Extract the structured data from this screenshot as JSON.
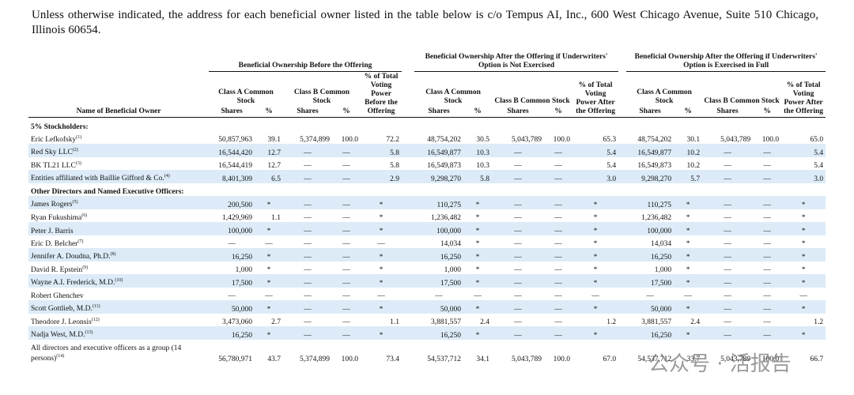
{
  "intro": "Unless otherwise indicated, the address for each beneficial owner listed in the table below is c/o Tempus AI, Inc., 600 West Chicago Avenue, Suite 510 Chicago, Illinois 60654.",
  "table": {
    "name_header": "Name of Beneficial Owner",
    "groups": [
      {
        "title": "Beneficial Ownership Before the Offering",
        "class_a": "Class A Common Stock",
        "class_b": "Class B Common Stock",
        "voting": "% of Total Voting Power Before the Offering",
        "columns": [
          "Shares",
          "%",
          "Shares",
          "%"
        ]
      },
      {
        "title": "Beneficial Ownership After the Offering if Underwriters' Option is Not Exercised",
        "class_a": "Class A Common Stock",
        "class_b": "Class B Common Stock",
        "voting": "% of Total Voting Power After the Offering",
        "columns": [
          "Shares",
          "%",
          "Shares",
          "%"
        ]
      },
      {
        "title": "Beneficial Ownership After the Offering if Underwriters' Option is Exercised in Full",
        "class_a": "Class A Common Stock",
        "class_b": "Class B Common Stock",
        "voting": "% of Total Voting Power After the Offering",
        "columns": [
          "Shares",
          "%",
          "Shares",
          "%"
        ]
      }
    ],
    "rows": [
      {
        "section": "5% Stockholders:"
      },
      {
        "name": "Eric Lefkofsky",
        "note": "(1)",
        "cells": [
          "50,857,963",
          "39.1",
          "5,374,899",
          "100.0",
          "72.2",
          "48,754,202",
          "30.5",
          "5,043,789",
          "100.0",
          "65.3",
          "48,754,202",
          "30.1",
          "5,043,789",
          "100.0",
          "65.0"
        ]
      },
      {
        "name": "Red Sky LLC",
        "note": "(2)",
        "cells": [
          "16,544,420",
          "12.7",
          "—",
          "—",
          "5.8",
          "16,549,877",
          "10.3",
          "—",
          "—",
          "5.4",
          "16,549,877",
          "10.2",
          "—",
          "—",
          "5.4"
        ]
      },
      {
        "name": "BK TL21 LLC",
        "note": "(3)",
        "cells": [
          "16,544,419",
          "12.7",
          "—",
          "—",
          "5.8",
          "16,549,873",
          "10.3",
          "—",
          "—",
          "5.4",
          "16,549,873",
          "10.2",
          "—",
          "—",
          "5.4"
        ]
      },
      {
        "name": "Entities affiliated with Baillie Gifford & Co.",
        "note": "(4)",
        "cells": [
          "8,401,309",
          "6.5",
          "—",
          "—",
          "2.9",
          "9,298,270",
          "5.8",
          "—",
          "—",
          "3.0",
          "9,298,270",
          "5.7",
          "—",
          "—",
          "3.0"
        ]
      },
      {
        "section": "Other Directors and Named Executive Officers:"
      },
      {
        "name": "James Rogers",
        "note": "(5)",
        "cells": [
          "200,500",
          "*",
          "—",
          "—",
          "*",
          "110,275",
          "*",
          "—",
          "—",
          "*",
          "110,275",
          "*",
          "—",
          "—",
          "*"
        ]
      },
      {
        "name": "Ryan Fukushima",
        "note": "(6)",
        "cells": [
          "1,429,969",
          "1.1",
          "—",
          "—",
          "*",
          "1,236,482",
          "*",
          "—",
          "—",
          "*",
          "1,236,482",
          "*",
          "—",
          "—",
          "*"
        ]
      },
      {
        "name": "Peter J. Barris",
        "cells": [
          "100,000",
          "*",
          "—",
          "—",
          "*",
          "100,000",
          "*",
          "—",
          "—",
          "*",
          "100,000",
          "*",
          "—",
          "—",
          "*"
        ]
      },
      {
        "name": "Eric D. Belcher",
        "note": "(7)",
        "cells": [
          "—",
          "—",
          "—",
          "—",
          "—",
          "14,034",
          "*",
          "—",
          "—",
          "*",
          "14,034",
          "*",
          "—",
          "—",
          "*"
        ]
      },
      {
        "name": "Jennifer A. Doudna, Ph.D.",
        "note": "(8)",
        "cells": [
          "16,250",
          "*",
          "—",
          "—",
          "*",
          "16,250",
          "*",
          "—",
          "—",
          "*",
          "16,250",
          "*",
          "—",
          "—",
          "*"
        ]
      },
      {
        "name": "David R. Epstein",
        "note": "(9)",
        "cells": [
          "1,000",
          "*",
          "—",
          "—",
          "*",
          "1,000",
          "*",
          "—",
          "—",
          "*",
          "1,000",
          "*",
          "—",
          "—",
          "*"
        ]
      },
      {
        "name": "Wayne A.I. Frederick, M.D.",
        "note": "(10)",
        "cells": [
          "17,500",
          "*",
          "—",
          "—",
          "*",
          "17,500",
          "*",
          "—",
          "—",
          "*",
          "17,500",
          "*",
          "—",
          "—",
          "*"
        ]
      },
      {
        "name": "Robert Ghenchev",
        "cells": [
          "—",
          "—",
          "—",
          "—",
          "—",
          "—",
          "—",
          "—",
          "—",
          "—",
          "—",
          "—",
          "—",
          "—",
          "—"
        ]
      },
      {
        "name": "Scott Gottlieb, M.D.",
        "note": "(11)",
        "cells": [
          "50,000",
          "*",
          "—",
          "—",
          "*",
          "50,000",
          "*",
          "—",
          "—",
          "*",
          "50,000",
          "*",
          "—",
          "—",
          "*"
        ]
      },
      {
        "name": "Theodore J. Leonsis",
        "note": "(12)",
        "cells": [
          "3,473,060",
          "2.7",
          "—",
          "—",
          "1.1",
          "3,881,557",
          "2.4",
          "—",
          "—",
          "1.2",
          "3,881,557",
          "2.4",
          "—",
          "—",
          "1.2"
        ]
      },
      {
        "name": "Nadja West, M.D.",
        "note": "(13)",
        "cells": [
          "16,250",
          "*",
          "—",
          "—",
          "*",
          "16,250",
          "*",
          "—",
          "—",
          "*",
          "16,250",
          "*",
          "—",
          "—",
          "*"
        ]
      },
      {
        "name": "All directors and executive officers as a group (14 persons)",
        "note": "(14)",
        "cells": [
          "56,780,971",
          "43.7",
          "5,374,899",
          "100.0",
          "73.4",
          "54,537,712",
          "34.1",
          "5,043,789",
          "100.0",
          "67.0",
          "54,537,712",
          "33.7",
          "5,043,789",
          "100.0",
          "66.7"
        ]
      }
    ]
  },
  "watermark": "公众号 · 活报告"
}
